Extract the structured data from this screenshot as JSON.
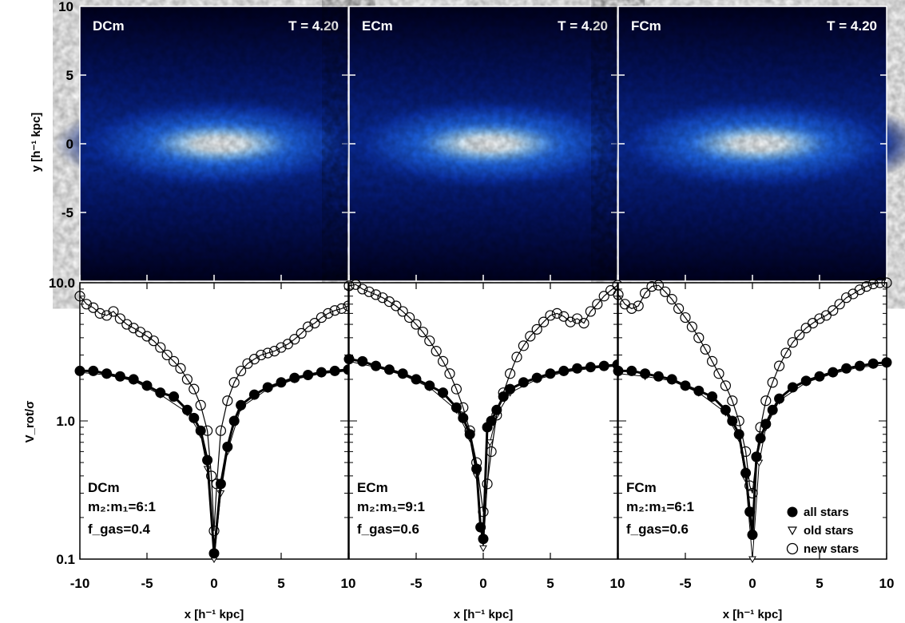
{
  "chart_data": [
    {
      "type": "heatmap",
      "panels": [
        {
          "model": "DCm",
          "time": "T = 4.20"
        },
        {
          "model": "ECm",
          "time": "T = 4.20"
        },
        {
          "model": "FCm",
          "time": "T = 4.20"
        }
      ],
      "ylabel": "y [h⁻¹ kpc]",
      "yticks": [
        "10",
        "5",
        "0",
        "-5"
      ],
      "ylim": [
        -10,
        10
      ],
      "xlim": [
        -10,
        10
      ],
      "colormap": [
        "#000030",
        "#001a8c",
        "#1a5fe6",
        "#7fc6ff",
        "#ffffff"
      ]
    },
    {
      "type": "scatter",
      "ylabel": "V_rot/σ",
      "xlabel": "x [h⁻¹ kpc]",
      "yscale": "log",
      "ylim": [
        0.1,
        10
      ],
      "xlim": [
        -10,
        10
      ],
      "yticks": [
        "10.0",
        "1.0",
        "0.1"
      ],
      "xticks_first": [
        "-10",
        "-5",
        "0",
        "5",
        "10"
      ],
      "xticks_rest": [
        "-5",
        "0",
        "5",
        "10"
      ],
      "legend": {
        "placement": "bottom-right",
        "entries": [
          "all stars",
          "old stars",
          "new stars"
        ]
      },
      "panels": [
        {
          "model": "DCm",
          "ratio": "m₂:m₁=6:1",
          "fgas": "f_gas=0.4",
          "series": [
            {
              "name": "all stars",
              "x": [
                -10,
                -9,
                -8,
                -7,
                -6,
                -5,
                -4,
                -3,
                -2,
                -1.5,
                -1,
                -0.5,
                0,
                0.5,
                1,
                1.5,
                2,
                3,
                4,
                5,
                6,
                7,
                8,
                9,
                10
              ],
              "y": [
                2.3,
                2.3,
                2.2,
                2.1,
                2.0,
                1.8,
                1.6,
                1.5,
                1.2,
                1.05,
                0.85,
                0.52,
                0.11,
                0.35,
                0.65,
                1.0,
                1.3,
                1.55,
                1.75,
                1.9,
                2.05,
                2.15,
                2.25,
                2.3,
                2.35
              ]
            },
            {
              "name": "old stars",
              "x": [
                -10,
                -8,
                -6,
                -4,
                -2,
                -1,
                -0.5,
                0,
                0.5,
                1,
                2,
                4,
                6,
                8,
                10
              ],
              "y": [
                2.25,
                2.15,
                1.95,
                1.55,
                1.15,
                0.8,
                0.45,
                0.1,
                0.3,
                0.6,
                1.25,
                1.7,
                2.0,
                2.2,
                2.3
              ]
            },
            {
              "name": "new stars",
              "x": [
                -10,
                -9.5,
                -9,
                -8.5,
                -8,
                -7.5,
                -7,
                -6.5,
                -6,
                -5.5,
                -5,
                -4.5,
                -4,
                -3.5,
                -3,
                -2.5,
                -2,
                -1.5,
                -1,
                -0.5,
                -0.2,
                0,
                0.2,
                0.5,
                1,
                1.5,
                2,
                2.5,
                3,
                3.5,
                4,
                4.5,
                5,
                5.5,
                6,
                6.5,
                7,
                7.5,
                8,
                8.5,
                9,
                9.5,
                10
              ],
              "y": [
                8.0,
                7.0,
                6.6,
                6.0,
                5.8,
                6.2,
                5.5,
                5.0,
                4.7,
                4.4,
                4.1,
                3.8,
                3.4,
                3.0,
                2.7,
                2.4,
                2.0,
                1.7,
                1.3,
                0.85,
                0.4,
                0.16,
                0.35,
                0.85,
                1.4,
                1.9,
                2.3,
                2.6,
                2.8,
                3.0,
                3.1,
                3.2,
                3.4,
                3.6,
                3.9,
                4.3,
                4.8,
                5.1,
                5.6,
                6.0,
                6.3,
                6.5,
                6.8
              ]
            }
          ]
        },
        {
          "model": "ECm",
          "ratio": "m₂:m₁=9:1",
          "fgas": "f_gas=0.6",
          "series": [
            {
              "name": "all stars",
              "x": [
                -10,
                -9,
                -8,
                -7,
                -6,
                -5,
                -4,
                -3,
                -2,
                -1.5,
                -1,
                -0.5,
                -0.2,
                0,
                0.3,
                0.6,
                1,
                1.5,
                2,
                3,
                4,
                5,
                6,
                7,
                8,
                9,
                10
              ],
              "y": [
                2.8,
                2.7,
                2.5,
                2.35,
                2.2,
                2.0,
                1.8,
                1.6,
                1.25,
                1.05,
                0.8,
                0.45,
                0.17,
                0.14,
                0.9,
                1.0,
                1.2,
                1.5,
                1.7,
                1.9,
                2.05,
                2.2,
                2.3,
                2.4,
                2.45,
                2.5,
                2.55
              ]
            },
            {
              "name": "old stars",
              "x": [
                -10,
                -8,
                -6,
                -4,
                -2,
                -1,
                -0.5,
                0,
                0.5,
                1,
                2,
                4,
                6,
                8,
                10
              ],
              "y": [
                2.7,
                2.45,
                2.15,
                1.75,
                1.2,
                0.75,
                0.4,
                0.12,
                0.7,
                1.1,
                1.6,
                2.0,
                2.25,
                2.4,
                2.5
              ]
            },
            {
              "name": "new stars",
              "x": [
                -10,
                -9.5,
                -9,
                -8.5,
                -8,
                -7.5,
                -7,
                -6.5,
                -6,
                -5.5,
                -5,
                -4.5,
                -4,
                -3.5,
                -3,
                -2.5,
                -2,
                -1.5,
                -1,
                -0.5,
                0,
                0.3,
                0.6,
                1,
                1.5,
                2,
                2.5,
                3,
                3.5,
                4,
                4.5,
                5,
                5.5,
                6,
                6.5,
                7,
                7.5,
                8,
                8.5,
                9,
                9.5,
                10
              ],
              "y": [
                9.5,
                9.7,
                9.0,
                8.6,
                8.2,
                7.8,
                7.3,
                6.8,
                6.2,
                5.6,
                5.0,
                4.4,
                3.8,
                3.2,
                2.7,
                2.2,
                1.7,
                1.25,
                0.85,
                0.5,
                0.22,
                0.35,
                0.6,
                1.1,
                1.6,
                2.2,
                2.9,
                3.5,
                4.1,
                4.6,
                5.2,
                5.8,
                6.0,
                5.7,
                5.2,
                5.5,
                5.1,
                6.2,
                7.0,
                8.0,
                8.8,
                9.6
              ]
            }
          ]
        },
        {
          "model": "FCm",
          "ratio": "m₂:m₁=6:1",
          "fgas": "f_gas=0.6",
          "series": [
            {
              "name": "all stars",
              "x": [
                -10,
                -9,
                -8,
                -7,
                -6,
                -5,
                -4,
                -3,
                -2,
                -1.5,
                -1,
                -0.5,
                -0.2,
                0,
                0.3,
                0.6,
                1,
                1.5,
                2,
                3,
                4,
                5,
                6,
                7,
                8,
                9,
                10
              ],
              "y": [
                2.3,
                2.3,
                2.2,
                2.1,
                2.0,
                1.8,
                1.65,
                1.5,
                1.2,
                1.0,
                0.8,
                0.42,
                0.22,
                0.15,
                0.55,
                0.75,
                0.95,
                1.2,
                1.45,
                1.75,
                1.95,
                2.1,
                2.25,
                2.4,
                2.5,
                2.6,
                2.65
              ]
            },
            {
              "name": "old stars",
              "x": [
                -10,
                -8,
                -6,
                -4,
                -2,
                -1,
                -0.5,
                0,
                0.5,
                1,
                2,
                4,
                6,
                8,
                10
              ],
              "y": [
                2.2,
                2.1,
                1.95,
                1.6,
                1.15,
                0.75,
                0.38,
                0.1,
                0.5,
                0.9,
                1.4,
                1.9,
                2.2,
                2.45,
                2.55
              ]
            },
            {
              "name": "new stars",
              "x": [
                -10,
                -9.5,
                -9,
                -8.5,
                -8,
                -7.5,
                -7,
                -6.5,
                -6,
                -5.5,
                -5,
                -4.5,
                -4,
                -3.5,
                -3,
                -2.5,
                -2,
                -1.5,
                -1,
                -0.5,
                -0.2,
                0,
                0.3,
                0.6,
                1,
                1.5,
                2,
                2.5,
                3,
                3.5,
                4,
                4.5,
                5,
                5.5,
                6,
                6.5,
                7,
                7.5,
                8,
                8.5,
                9,
                9.5,
                10
              ],
              "y": [
                8.2,
                7.0,
                6.5,
                6.8,
                8.4,
                9.4,
                9.6,
                8.6,
                7.6,
                6.5,
                5.6,
                4.8,
                4.0,
                3.3,
                2.7,
                2.2,
                1.8,
                1.4,
                1.0,
                0.6,
                0.34,
                0.3,
                0.55,
                0.9,
                1.4,
                1.9,
                2.5,
                3.1,
                3.7,
                4.2,
                4.7,
                5.1,
                5.5,
                5.8,
                6.3,
                7.0,
                7.8,
                8.3,
                8.9,
                9.4,
                9.8,
                10.0,
                10.0
              ]
            }
          ]
        }
      ]
    }
  ]
}
